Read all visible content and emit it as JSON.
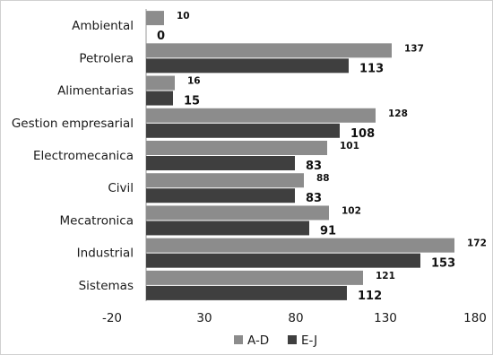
{
  "chart_data": {
    "type": "bar",
    "orientation": "horizontal",
    "title": "",
    "xlabel": "",
    "ylabel": "",
    "categories": [
      "Ambiental",
      "Petrolera",
      "Alimentarias",
      "Gestion empresarial",
      "Electromecanica",
      "Civil",
      "Mecatronica",
      "Industrial",
      "Sistemas"
    ],
    "series": [
      {
        "name": "A-D",
        "color": "#8c8c8c",
        "values": [
          10,
          137,
          16,
          128,
          101,
          88,
          102,
          172,
          121
        ]
      },
      {
        "name": "E-J",
        "color": "#3f3f3f",
        "values": [
          0,
          113,
          15,
          108,
          83,
          83,
          91,
          153,
          112
        ]
      }
    ],
    "xlim": [
      -20,
      180
    ],
    "xticks": [
      -20,
      30,
      80,
      130,
      180
    ],
    "grid": false,
    "legend_position": "bottom"
  }
}
